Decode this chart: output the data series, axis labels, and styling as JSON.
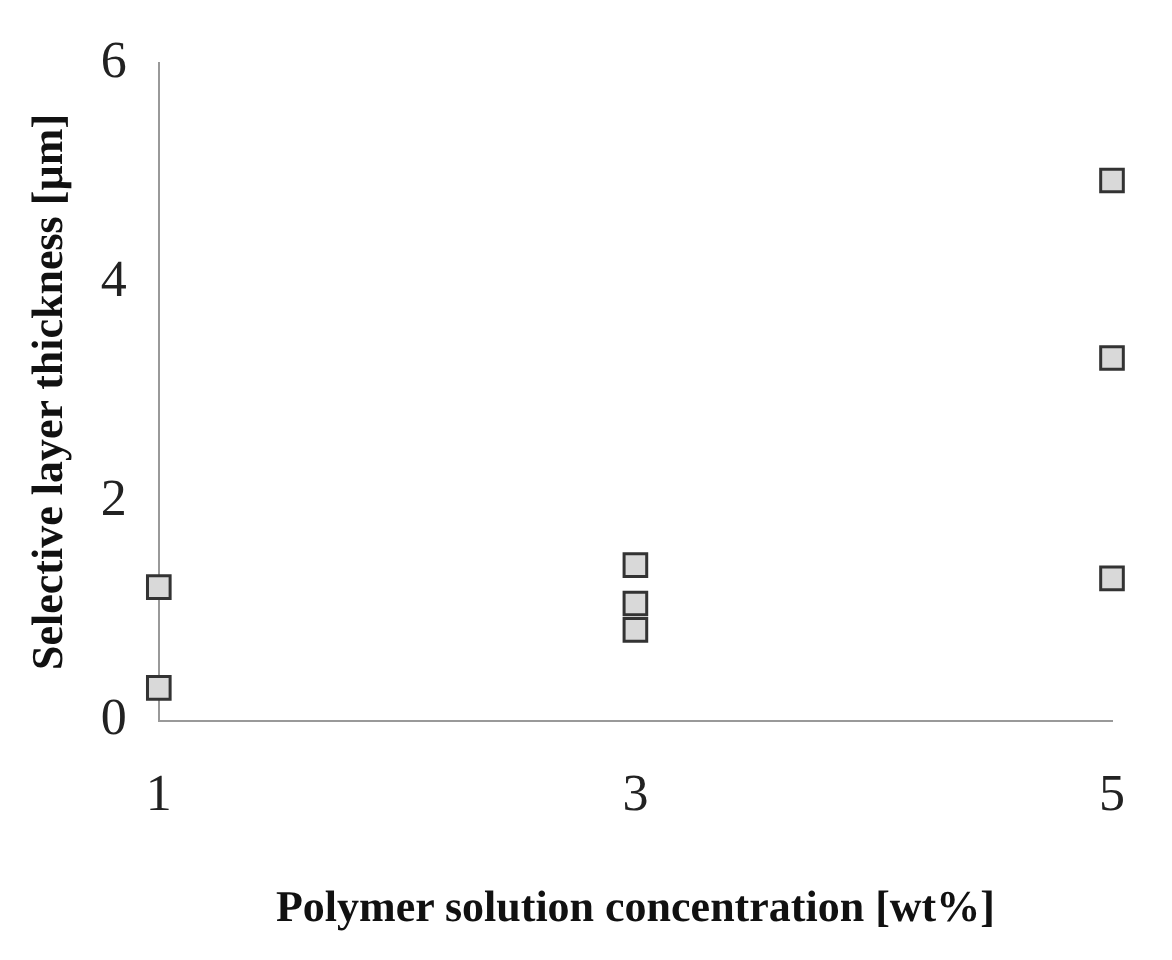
{
  "chart_data": {
    "type": "scatter",
    "xlabel": "Polymer solution concentration [wt%]",
    "ylabel": "Selective layer thickness [µm]",
    "x": [
      1,
      1,
      3,
      3,
      3,
      5,
      5,
      5
    ],
    "values": [
      1.22,
      0.3,
      1.42,
      1.07,
      0.83,
      4.93,
      3.31,
      1.3
    ],
    "color": "#d9d9d9",
    "marker": "square",
    "grid": false,
    "legend": false,
    "xlim": [
      1,
      5
    ],
    "xticks": [
      1,
      3,
      5
    ],
    "ylim": [
      0,
      6
    ],
    "yticks": [
      0,
      2,
      4,
      6
    ]
  }
}
